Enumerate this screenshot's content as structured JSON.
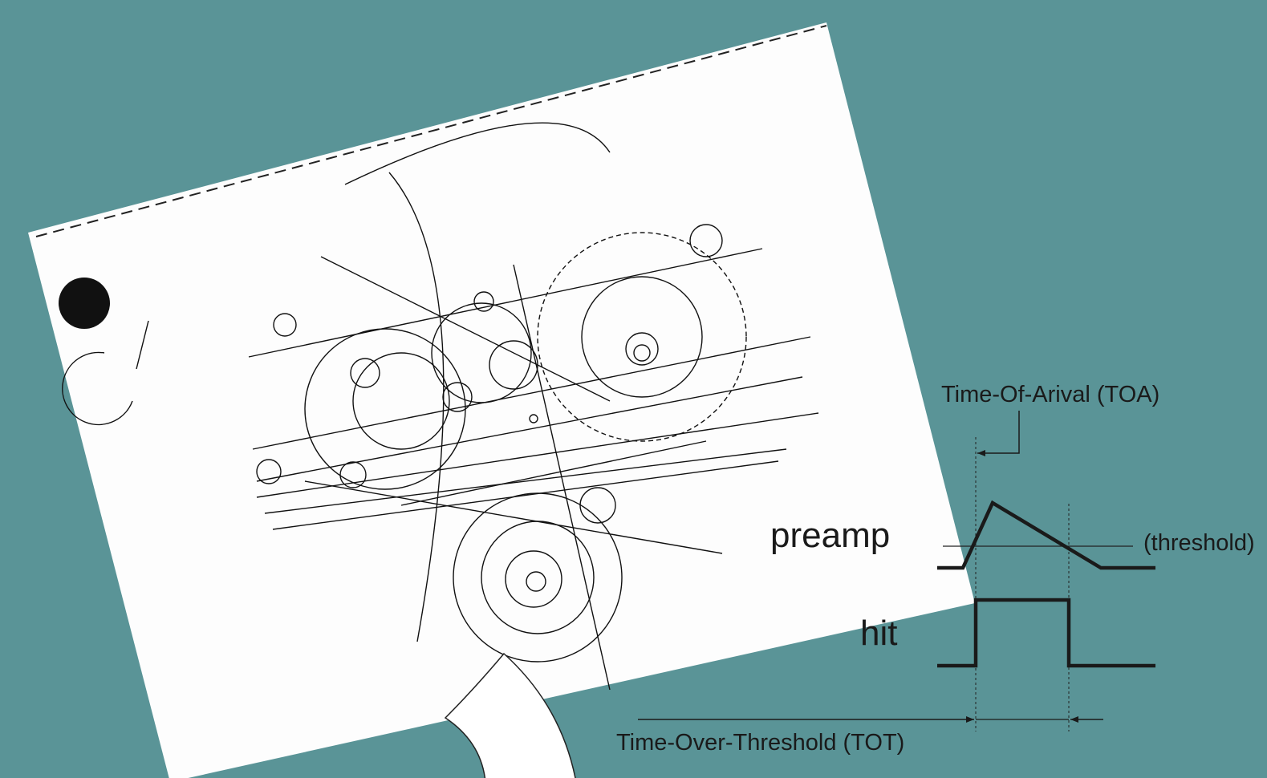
{
  "diagram": {
    "toa_label": "Time-Of-Arival (TOA)",
    "preamp_label": "preamp",
    "threshold_label": "(threshold)",
    "hit_label": "hit",
    "tot_label": "Time-Over-Threshold (TOT)"
  }
}
